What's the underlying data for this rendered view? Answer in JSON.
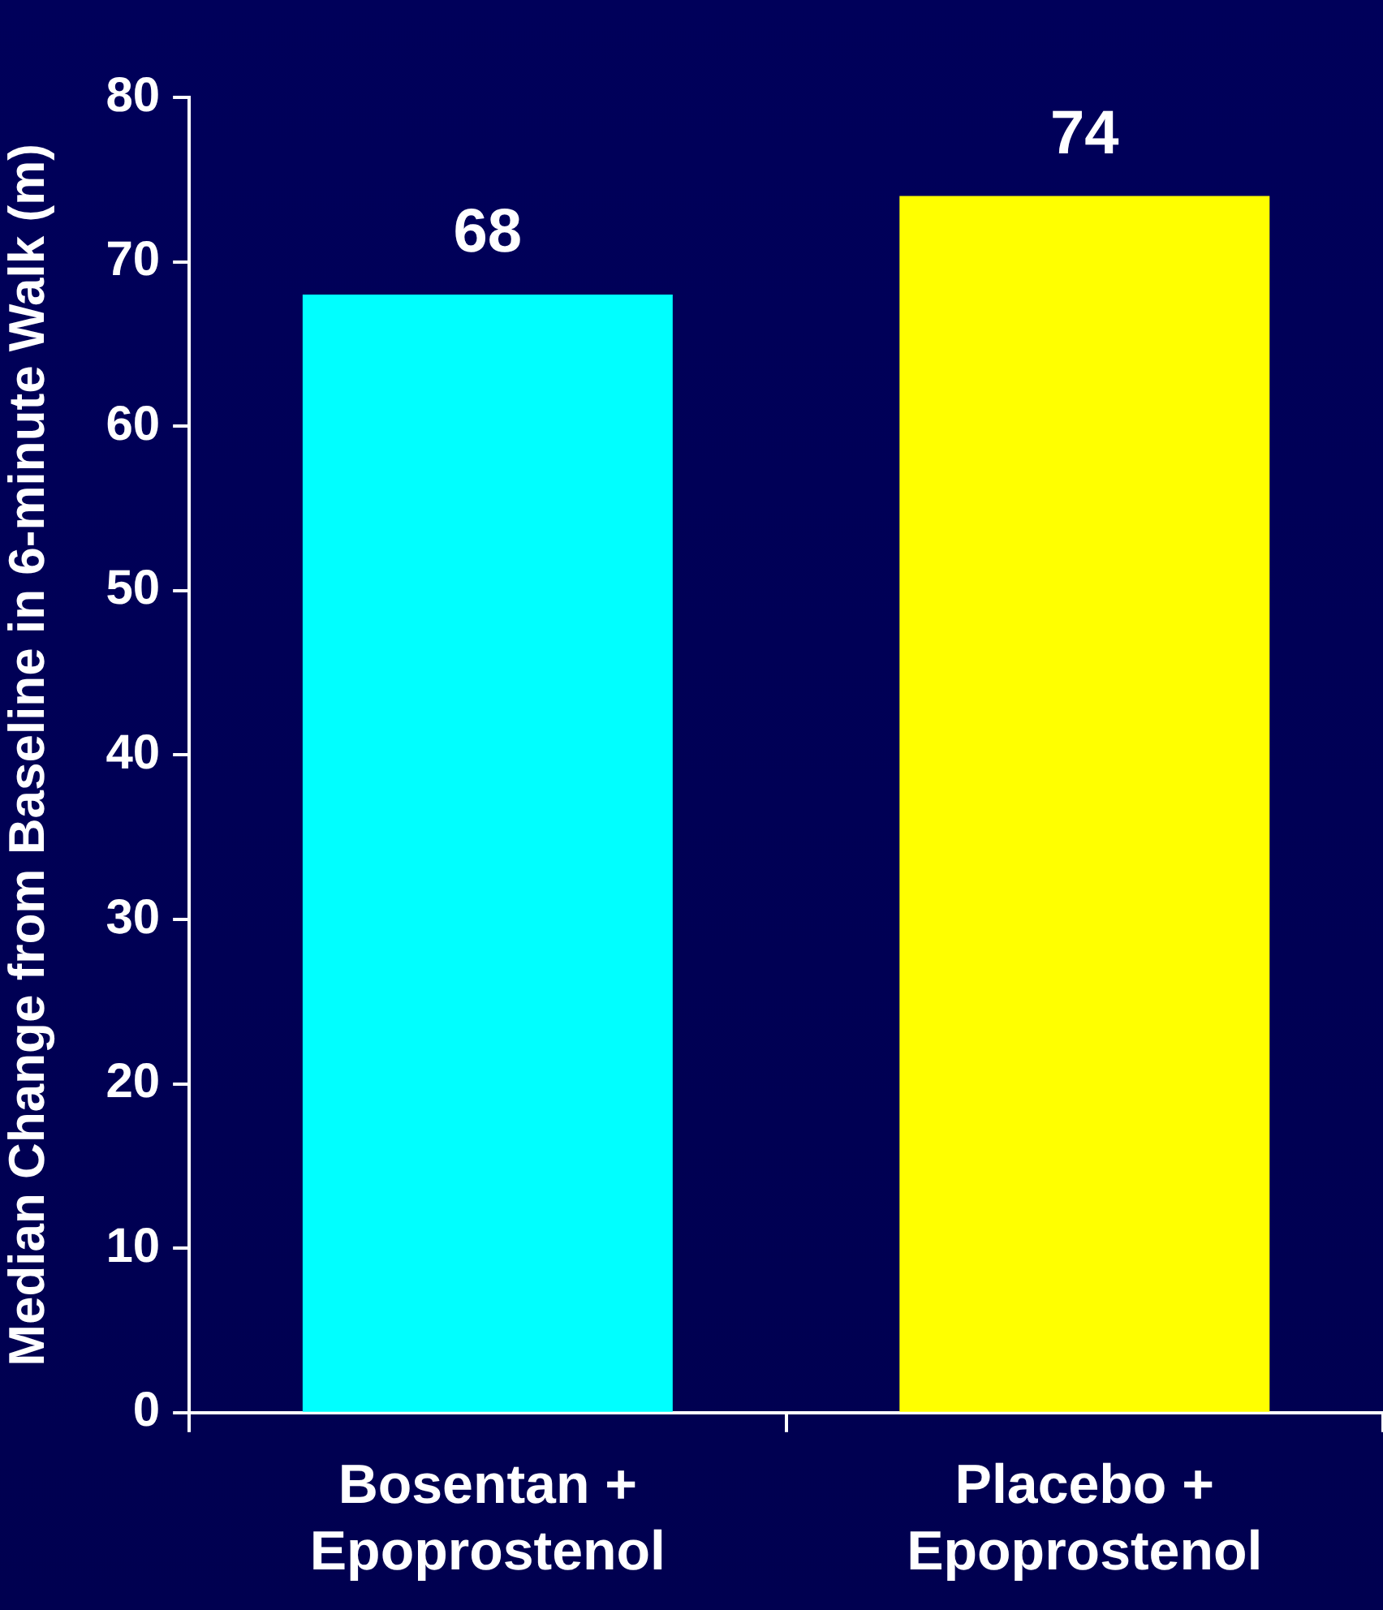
{
  "chart_data": {
    "type": "bar",
    "ylabel": "Median Change from Baseline in 6-minute Walk (m)",
    "categories": [
      "Bosentan + Epoprostenol",
      "Placebo + Epoprostenol"
    ],
    "values": [
      68,
      74
    ],
    "colors": [
      "#00ffff",
      "#ffff00"
    ],
    "ylim": [
      0,
      80
    ],
    "yticks": [
      0,
      10,
      20,
      30,
      40,
      50,
      60,
      70,
      80
    ],
    "grid": false,
    "legend": false,
    "data_labels": true
  }
}
